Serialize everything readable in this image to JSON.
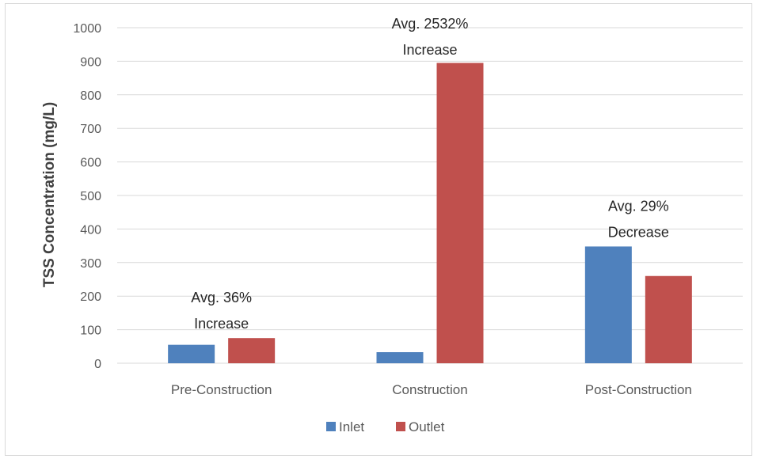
{
  "chart_data": {
    "type": "bar",
    "title": "",
    "xlabel": "",
    "ylabel": "TSS Concentration (mg/L)",
    "ylim": [
      0,
      1000
    ],
    "yticks": [
      0,
      100,
      200,
      300,
      400,
      500,
      600,
      700,
      800,
      900,
      1000
    ],
    "grid": true,
    "legend_position": "bottom",
    "categories": [
      "Pre-Construction",
      "Construction",
      "Post-Construction"
    ],
    "series": [
      {
        "name": "Inlet",
        "color": "#4f81bd",
        "values": [
          55,
          33,
          348
        ]
      },
      {
        "name": "Outlet",
        "color": "#c0504d",
        "values": [
          75,
          895,
          260
        ]
      }
    ],
    "annotations": [
      {
        "category": "Pre-Construction",
        "lines": [
          "Avg. 36%",
          "Increase"
        ]
      },
      {
        "category": "Construction",
        "lines": [
          "Avg. 2532%",
          "Increase"
        ]
      },
      {
        "category": "Post-Construction",
        "lines": [
          "Avg. 29%",
          "Decrease"
        ]
      }
    ]
  }
}
